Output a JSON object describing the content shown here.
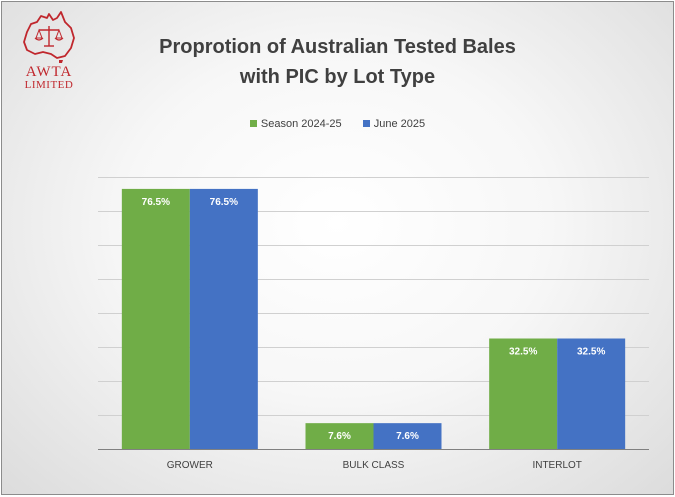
{
  "logo": {
    "line1": "AWTA",
    "line2": "LIMITED",
    "color": "#c0272d"
  },
  "colors": {
    "season": "#70ad47",
    "june": "#4472c4",
    "label_text": "#ffffff",
    "axis_text": "#404040",
    "grid": "#d0d0d0",
    "axis": "#808080"
  },
  "chart_data": {
    "type": "bar",
    "title_lines": [
      "Proprotion of Australian Tested Bales",
      "with PIC by Lot Type"
    ],
    "categories": [
      "GROWER",
      "BULK CLASS",
      "INTERLOT"
    ],
    "series": [
      {
        "name": "Season 2024-25",
        "values": [
          76.5,
          7.6,
          32.5
        ],
        "labels": [
          "76.5%",
          "7.6%",
          "32.5%"
        ]
      },
      {
        "name": "June 2025",
        "values": [
          76.5,
          7.6,
          32.5
        ],
        "labels": [
          "76.5%",
          "7.6%",
          "32.5%"
        ]
      }
    ],
    "ylim": [
      0,
      80
    ],
    "gridlines": 8,
    "grid": true,
    "legend_position": "top",
    "xlabel": "",
    "ylabel": ""
  }
}
